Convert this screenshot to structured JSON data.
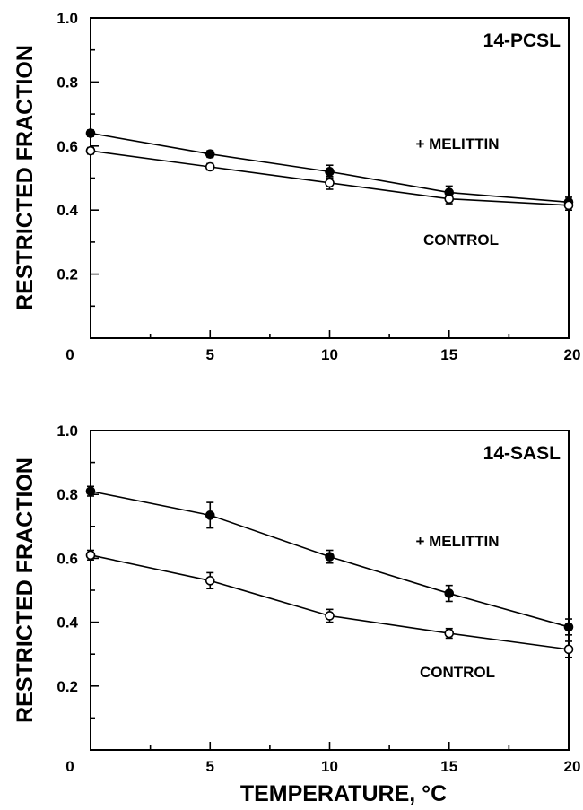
{
  "chart_data": [
    {
      "type": "line",
      "panel_label": "14-PCSL",
      "ylabel": "RESTRICTED FRACTION",
      "xlim": [
        0,
        20
      ],
      "ylim": [
        0,
        1.0
      ],
      "x_ticks": [
        "0",
        "5",
        "10",
        "15",
        "20"
      ],
      "y_ticks": [
        "0.2",
        "0.4",
        "0.6",
        "0.8",
        "1.0"
      ],
      "series": [
        {
          "name": "+ MELITTIN",
          "marker": "filled-circle",
          "points": [
            {
              "x": 0,
              "y": 0.64,
              "err": 0.01
            },
            {
              "x": 5,
              "y": 0.575,
              "err": 0.01
            },
            {
              "x": 10,
              "y": 0.52,
              "err": 0.02
            },
            {
              "x": 15,
              "y": 0.455,
              "err": 0.02
            },
            {
              "x": 20,
              "y": 0.425,
              "err": 0.015
            }
          ]
        },
        {
          "name": "CONTROL",
          "marker": "open-circle",
          "points": [
            {
              "x": 0,
              "y": 0.585,
              "err": 0.01
            },
            {
              "x": 5,
              "y": 0.535,
              "err": 0.01
            },
            {
              "x": 10,
              "y": 0.485,
              "err": 0.02
            },
            {
              "x": 15,
              "y": 0.435,
              "err": 0.015
            },
            {
              "x": 20,
              "y": 0.415,
              "err": 0.015
            }
          ]
        }
      ]
    },
    {
      "type": "line",
      "panel_label": "14-SASL",
      "ylabel": "RESTRICTED FRACTION",
      "xlabel": "TEMPERATURE, °C",
      "xlim": [
        0,
        20
      ],
      "ylim": [
        0,
        1.0
      ],
      "x_ticks": [
        "0",
        "5",
        "10",
        "15",
        "20"
      ],
      "y_ticks": [
        "0.2",
        "0.4",
        "0.6",
        "0.8",
        "1.0"
      ],
      "series": [
        {
          "name": "+ MELITTIN",
          "marker": "filled-circle",
          "points": [
            {
              "x": 0,
              "y": 0.81,
              "err": 0.015
            },
            {
              "x": 5,
              "y": 0.735,
              "err": 0.04
            },
            {
              "x": 10,
              "y": 0.605,
              "err": 0.02
            },
            {
              "x": 15,
              "y": 0.49,
              "err": 0.025
            },
            {
              "x": 20,
              "y": 0.385,
              "err": 0.025
            }
          ]
        },
        {
          "name": "CONTROL",
          "marker": "open-circle",
          "points": [
            {
              "x": 0,
              "y": 0.61,
              "err": 0.015
            },
            {
              "x": 5,
              "y": 0.53,
              "err": 0.025
            },
            {
              "x": 10,
              "y": 0.42,
              "err": 0.02
            },
            {
              "x": 15,
              "y": 0.365,
              "err": 0.015
            },
            {
              "x": 20,
              "y": 0.315,
              "err": 0.025
            }
          ]
        }
      ]
    }
  ]
}
